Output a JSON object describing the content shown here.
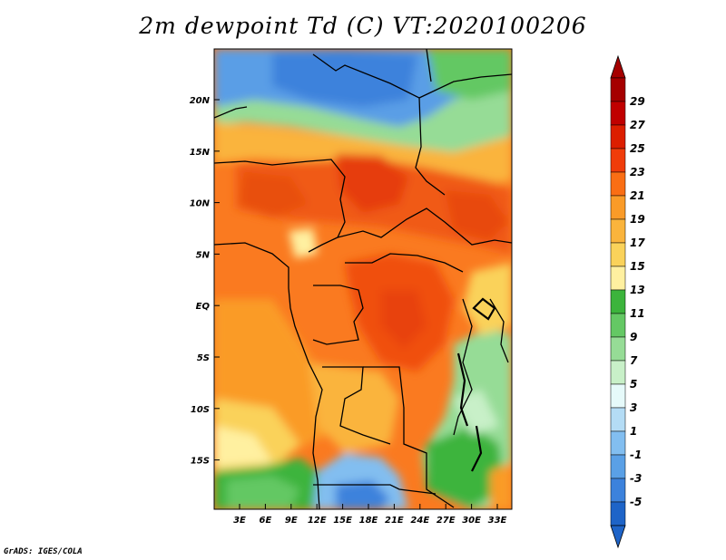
{
  "title": "2m dewpoint Td (C) VT:2020100206",
  "credit": "GrADS: IGES/COLA",
  "map": {
    "lat_ticks": [
      "20N",
      "15N",
      "10N",
      "5N",
      "EQ",
      "5S",
      "10S",
      "15S"
    ],
    "lon_ticks": [
      "3E",
      "6E",
      "9E",
      "12E",
      "15E",
      "18E",
      "21E",
      "24E",
      "27E",
      "30E",
      "33E"
    ],
    "colorbar": {
      "labels": [
        "29",
        "27",
        "25",
        "23",
        "21",
        "19",
        "17",
        "15",
        "13",
        "11",
        "9",
        "7",
        "5",
        "3",
        "1",
        "-1",
        "-3",
        "-5"
      ],
      "colors": [
        "#a50000",
        "#c00000",
        "#dc1e00",
        "#f03c0a",
        "#fa6e14",
        "#fa9b28",
        "#fab43c",
        "#fad25a",
        "#fff0a0",
        "#3cb43c",
        "#64c864",
        "#96dc96",
        "#c8f0c8",
        "#e6fafa",
        "#b4dcf5",
        "#82bef0",
        "#5aa0e6",
        "#3c82dc",
        "#1e64c8"
      ],
      "top_color": "#a50000",
      "bottom_color": "#1e64c8"
    }
  }
}
